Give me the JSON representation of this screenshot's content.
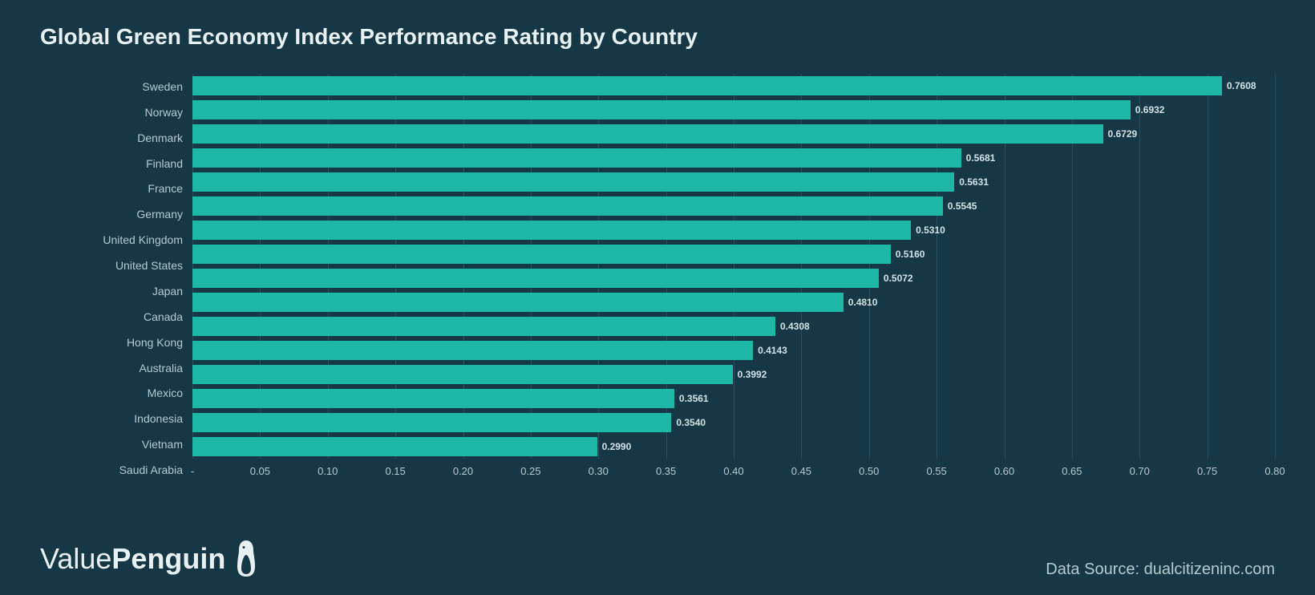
{
  "title": "Global Green Economy Index Performance Rating by Country",
  "chart": {
    "type": "bar_horizontal",
    "background_color": "#163745",
    "bar_color": "#1fb8a6",
    "grid_color": "#28505e",
    "label_color": "#b8c9d0",
    "title_color": "#e7f0f2",
    "value_label_color": "#d3e2e6",
    "x_min": 0,
    "x_max": 0.8,
    "x_ticks": [
      0,
      0.05,
      0.1,
      0.15,
      0.2,
      0.25,
      0.3,
      0.35,
      0.4,
      0.45,
      0.5,
      0.55,
      0.6,
      0.65,
      0.7,
      0.75,
      0.8
    ],
    "x_tick_labels": [
      "-",
      "0.05",
      "0.10",
      "0.15",
      "0.20",
      "0.25",
      "0.30",
      "0.35",
      "0.40",
      "0.45",
      "0.50",
      "0.55",
      "0.60",
      "0.65",
      "0.70",
      "0.75",
      "0.80"
    ],
    "categories": [
      "Sweden",
      "Norway",
      "Denmark",
      "Finland",
      "France",
      "Germany",
      "United Kingdom",
      "United States",
      "Japan",
      "Canada",
      "Hong Kong",
      "Australia",
      "Mexico",
      "Indonesia",
      "Vietnam",
      "Saudi Arabia"
    ],
    "values": [
      0.7608,
      0.6932,
      0.6729,
      0.5681,
      0.5631,
      0.5545,
      0.531,
      0.516,
      0.5072,
      0.481,
      0.4308,
      0.4143,
      0.3992,
      0.3561,
      0.354,
      0.299
    ],
    "value_labels": [
      "0.7608",
      "0.6932",
      "0.6729",
      "0.5681",
      "0.5631",
      "0.5545",
      "0.5310",
      "0.5160",
      "0.5072",
      "0.4810",
      "0.4308",
      "0.4143",
      "0.3992",
      "0.3561",
      "0.3540",
      "0.2990"
    ]
  },
  "footer": {
    "logo_prefix": "Value",
    "logo_bold": "Penguin",
    "source": "Data Source: dualcitizeninc.com"
  }
}
